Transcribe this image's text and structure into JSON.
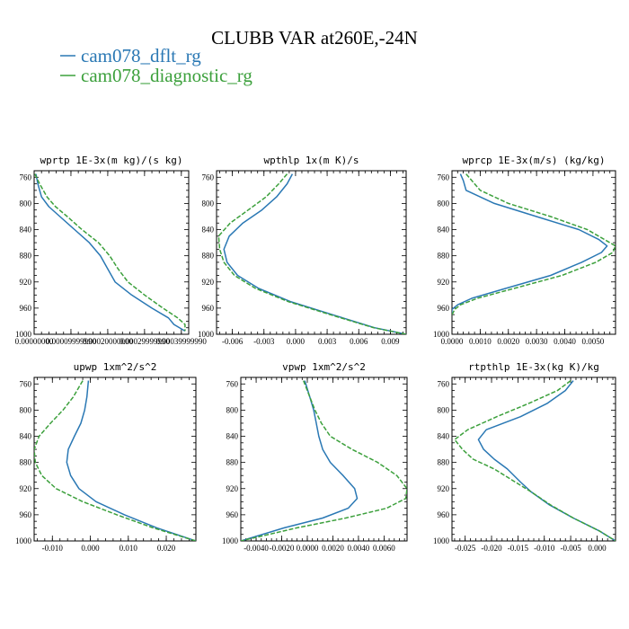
{
  "figure": {
    "title": "CLUBB VAR at260E,-24N",
    "legend": [
      {
        "label": "cam078_dflt_rg",
        "color": "#2a78b4",
        "dash": false
      },
      {
        "label": "cam078_diagnostic_rg",
        "color": "#3ca03c",
        "dash": true
      }
    ]
  },
  "chart_data": [
    {
      "type": "line",
      "title": "wprtp  1E-3x(m kg)/(s kg)",
      "xlim": [
        0.0,
        0.00042
      ],
      "ylim": [
        1000,
        750
      ],
      "y_inverted": true,
      "xticks": [
        0.0,
        0.0001,
        0.0002,
        0.0003,
        0.0004
      ],
      "xtick_labels": [
        "0.00000000",
        "0.00009999990",
        "0.00020000000",
        "0.00029999990",
        "0.00039999990"
      ],
      "yticks": [
        760,
        800,
        840,
        880,
        920,
        960,
        1000
      ],
      "ytick_labels": [
        "760",
        "800",
        "840",
        "880",
        "920",
        "960",
        "1000"
      ],
      "y": [
        755,
        770,
        790,
        805,
        820,
        840,
        860,
        880,
        900,
        920,
        940,
        960,
        975,
        985,
        995
      ],
      "series": [
        {
          "name": "cam078_dflt_rg",
          "x": [
            5e-06,
            1e-05,
            2e-05,
            4e-05,
            7e-05,
            0.00011,
            0.00015,
            0.00018,
            0.0002,
            0.00022,
            0.000265,
            0.00032,
            0.000365,
            0.00038,
            0.00041
          ]
        },
        {
          "name": "cam078_diagnostic_rg",
          "x": [
            2e-06,
            1.5e-05,
            3.5e-05,
            5.8e-05,
            9e-05,
            0.00013,
            0.000175,
            0.000205,
            0.000228,
            0.000255,
            0.0003,
            0.00035,
            0.00039,
            0.00041,
            0.00041
          ]
        }
      ]
    },
    {
      "type": "line",
      "title": "wpthlp  1x(m K)/s",
      "xlim": [
        -0.0075,
        0.0105
      ],
      "ylim": [
        1000,
        750
      ],
      "y_inverted": true,
      "xticks": [
        -0.006,
        -0.003,
        0.0,
        0.003,
        0.006,
        0.009
      ],
      "xtick_labels": [
        "-0.006",
        "-0.003",
        "0.000",
        "0.003",
        "0.006",
        "0.009"
      ],
      "yticks": [
        760,
        800,
        840,
        880,
        920,
        960,
        1000
      ],
      "ytick_labels": [
        "760",
        "800",
        "840",
        "880",
        "920",
        "960",
        "1000"
      ],
      "y": [
        755,
        770,
        790,
        810,
        830,
        850,
        870,
        890,
        910,
        930,
        950,
        970,
        990,
        1000
      ],
      "series": [
        {
          "name": "cam078_dflt_rg",
          "x": [
            -0.0003,
            -0.0008,
            -0.0018,
            -0.0032,
            -0.005,
            -0.0063,
            -0.0068,
            -0.0065,
            -0.0055,
            -0.0035,
            -0.0005,
            0.0035,
            0.0075,
            0.0105
          ]
        },
        {
          "name": "cam078_diagnostic_rg",
          "x": [
            -0.0008,
            -0.0016,
            -0.0028,
            -0.0045,
            -0.0062,
            -0.0073,
            -0.0072,
            -0.0068,
            -0.0058,
            -0.0038,
            -0.0007,
            0.0033,
            0.0074,
            0.0105
          ]
        }
      ]
    },
    {
      "type": "line",
      "title": "wprcp  1E-3x(m/s) (kg/kg)",
      "xlim": [
        0.0,
        0.0058
      ],
      "ylim": [
        1000,
        750
      ],
      "y_inverted": true,
      "xticks": [
        0.0,
        0.001,
        0.002,
        0.003,
        0.004,
        0.005
      ],
      "xtick_labels": [
        "0.0000",
        "0.0010",
        "0.0020",
        "0.0030",
        "0.0040",
        "0.0050"
      ],
      "yticks": [
        760,
        800,
        840,
        880,
        920,
        960,
        1000
      ],
      "ytick_labels": [
        "760",
        "800",
        "840",
        "880",
        "920",
        "960",
        "1000"
      ],
      "y": [
        755,
        765,
        780,
        800,
        820,
        840,
        855,
        865,
        875,
        890,
        910,
        930,
        945,
        955,
        962,
        970
      ],
      "series": [
        {
          "name": "cam078_dflt_rg",
          "x": [
            0.0003,
            0.0004,
            0.0005,
            0.0015,
            0.003,
            0.0045,
            0.0052,
            0.0055,
            0.0053,
            0.0046,
            0.0035,
            0.0019,
            0.0007,
            0.0002,
            0.0,
            0.0
          ]
        },
        {
          "name": "cam078_diagnostic_rg",
          "x": [
            0.0005,
            0.0007,
            0.001,
            0.002,
            0.0035,
            0.0048,
            0.0054,
            0.0058,
            0.0057,
            0.0051,
            0.0039,
            0.0022,
            0.0009,
            0.0003,
            0.0001,
            0.0
          ]
        }
      ]
    },
    {
      "type": "line",
      "title": "upwp  1xm^2/s^2",
      "xlim": [
        -0.0148,
        0.0278
      ],
      "ylim": [
        1000,
        750
      ],
      "y_inverted": true,
      "xticks": [
        -0.01,
        0.0,
        0.01,
        0.02
      ],
      "xtick_labels": [
        "-0.010",
        "0.000",
        "0.010",
        "0.020"
      ],
      "yticks": [
        760,
        800,
        840,
        880,
        920,
        960,
        1000
      ],
      "ytick_labels": [
        "760",
        "800",
        "840",
        "880",
        "920",
        "960",
        "1000"
      ],
      "y": [
        755,
        780,
        800,
        820,
        840,
        860,
        880,
        900,
        920,
        940,
        960,
        980,
        1000
      ],
      "series": [
        {
          "name": "cam078_dflt_rg",
          "x": [
            -0.0005,
            -0.0009,
            -0.0015,
            -0.0025,
            -0.0042,
            -0.0058,
            -0.0062,
            -0.0052,
            -0.003,
            0.0015,
            0.009,
            0.0175,
            0.0278
          ]
        },
        {
          "name": "cam078_diagnostic_rg",
          "x": [
            -0.002,
            -0.0045,
            -0.0072,
            -0.0105,
            -0.0135,
            -0.0148,
            -0.0145,
            -0.0128,
            -0.009,
            -0.002,
            0.007,
            0.0165,
            0.0278
          ]
        }
      ]
    },
    {
      "type": "line",
      "title": "vpwp  1xm^2/s^2",
      "xlim": [
        -0.0052,
        0.0078
      ],
      "ylim": [
        1000,
        750
      ],
      "y_inverted": true,
      "xticks": [
        -0.004,
        -0.002,
        0.0,
        0.002,
        0.004,
        0.006
      ],
      "xtick_labels": [
        "-0.0040",
        "-0.0020",
        "0.0000",
        "0.0020",
        "0.0040",
        "0.0060"
      ],
      "yticks": [
        760,
        800,
        840,
        880,
        920,
        960,
        1000
      ],
      "ytick_labels": [
        "760",
        "800",
        "840",
        "880",
        "920",
        "960",
        "1000"
      ],
      "y": [
        755,
        780,
        800,
        820,
        840,
        860,
        880,
        900,
        920,
        935,
        950,
        965,
        980,
        1000
      ],
      "series": [
        {
          "name": "cam078_dflt_rg",
          "x": [
            -0.0002,
            0.0002,
            0.0005,
            0.0007,
            0.0009,
            0.0012,
            0.0018,
            0.0028,
            0.0037,
            0.0039,
            0.0032,
            0.0012,
            -0.0018,
            -0.0052
          ]
        },
        {
          "name": "cam078_diagnostic_rg",
          "x": [
            -0.0003,
            0.0002,
            0.0006,
            0.0011,
            0.0018,
            0.0035,
            0.0055,
            0.007,
            0.0078,
            0.0077,
            0.0062,
            0.003,
            -0.0008,
            -0.0052
          ]
        }
      ]
    },
    {
      "type": "line",
      "title": "rtpthlp  1E-3x(kg K)/kg",
      "xlim": [
        -0.0275,
        0.0035
      ],
      "ylim": [
        1000,
        750
      ],
      "y_inverted": true,
      "xticks": [
        -0.025,
        -0.02,
        -0.015,
        -0.01,
        -0.005,
        0.0
      ],
      "xtick_labels": [
        "-0.025",
        "-0.020",
        "-0.015",
        "-0.010",
        "-0.005",
        "0.000"
      ],
      "yticks": [
        760,
        800,
        840,
        880,
        920,
        960,
        1000
      ],
      "ytick_labels": [
        "760",
        "800",
        "840",
        "880",
        "920",
        "960",
        "1000"
      ],
      "y": [
        755,
        770,
        790,
        810,
        830,
        845,
        860,
        875,
        890,
        910,
        925,
        945,
        965,
        985,
        1000
      ],
      "series": [
        {
          "name": "cam078_dflt_rg",
          "x": [
            -0.0045,
            -0.006,
            -0.0095,
            -0.0145,
            -0.021,
            -0.0225,
            -0.0215,
            -0.0195,
            -0.017,
            -0.0145,
            -0.0125,
            -0.009,
            -0.0045,
            0.0005,
            0.0035
          ]
        },
        {
          "name": "cam078_diagnostic_rg",
          "x": [
            -0.005,
            -0.0075,
            -0.013,
            -0.019,
            -0.0245,
            -0.027,
            -0.0255,
            -0.0235,
            -0.0195,
            -0.0155,
            -0.0125,
            -0.0088,
            -0.0045,
            0.0005,
            0.0035
          ]
        }
      ]
    }
  ]
}
